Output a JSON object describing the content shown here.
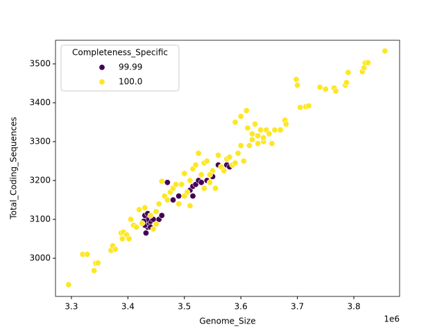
{
  "chart_data": {
    "type": "scatter",
    "x_label": "Genome_Size",
    "y_label": "Total_Coding_Sequences",
    "x_offset_label": "1e6",
    "legend_title": "Completeness_Specific",
    "legend_loc": "upper left",
    "xlim": [
      3.2718,
      3.881
    ],
    "ylim": [
      2901.8,
      3560.7
    ],
    "xticks": [
      3.3,
      3.4,
      3.5,
      3.6,
      3.7,
      3.8
    ],
    "yticks": [
      3000,
      3100,
      3200,
      3300,
      3400,
      3500
    ],
    "series": [
      {
        "name": "99.99",
        "color": "#440154",
        "x": [
          3.432,
          3.435,
          3.43,
          3.438,
          3.44,
          3.433,
          3.445,
          3.43,
          3.435,
          3.455,
          3.46,
          3.47,
          3.48,
          3.49,
          3.51,
          3.515,
          3.52,
          3.525,
          3.53,
          3.54,
          3.55,
          3.56,
          3.575,
          3.58,
          3.515,
          3.44,
          3.428
        ],
        "y": [
          3065,
          3080,
          3085,
          3090,
          3095,
          3100,
          3100,
          3110,
          3115,
          3100,
          3110,
          3195,
          3150,
          3160,
          3175,
          3185,
          3190,
          3200,
          3195,
          3200,
          3210,
          3240,
          3240,
          3235,
          3160,
          3080,
          3095
        ]
      },
      {
        "name": "100.0",
        "color": "#fde725",
        "x": [
          3.295,
          3.32,
          3.328,
          3.34,
          3.343,
          3.347,
          3.37,
          3.373,
          3.378,
          3.39,
          3.388,
          3.392,
          3.398,
          3.402,
          3.405,
          3.41,
          3.415,
          3.42,
          3.425,
          3.43,
          3.45,
          3.46,
          3.455,
          3.465,
          3.47,
          3.475,
          3.48,
          3.485,
          3.49,
          3.495,
          3.5,
          3.505,
          3.51,
          3.515,
          3.52,
          3.525,
          3.53,
          3.535,
          3.54,
          3.545,
          3.55,
          3.555,
          3.56,
          3.57,
          3.575,
          3.58,
          3.585,
          3.59,
          3.595,
          3.6,
          3.6,
          3.605,
          3.61,
          3.612,
          3.615,
          3.62,
          3.625,
          3.63,
          3.635,
          3.64,
          3.645,
          3.65,
          3.655,
          3.66,
          3.67,
          3.678,
          3.68,
          3.698,
          3.7,
          3.705,
          3.715,
          3.72,
          3.74,
          3.75,
          3.765,
          3.768,
          3.785,
          3.787,
          3.79,
          3.815,
          3.818,
          3.82,
          3.825,
          3.855,
          3.44,
          3.445,
          3.45,
          3.5,
          3.51,
          3.535,
          3.545,
          3.565,
          3.59,
          3.62,
          3.63,
          3.64,
          3.66
        ],
        "y": [
          2932,
          3010,
          3010,
          2968,
          2987,
          2988,
          3020,
          3032,
          3023,
          3050,
          3065,
          3067,
          3060,
          3050,
          3100,
          3085,
          3080,
          3125,
          3090,
          3130,
          3120,
          3198,
          3140,
          3160,
          3150,
          3170,
          3180,
          3190,
          3140,
          3190,
          3218,
          3170,
          3200,
          3230,
          3240,
          3270,
          3215,
          3245,
          3250,
          3195,
          3225,
          3180,
          3265,
          3225,
          3255,
          3260,
          3240,
          3350,
          3270,
          3290,
          3365,
          3250,
          3380,
          3335,
          3290,
          3305,
          3345,
          3315,
          3330,
          3300,
          3330,
          3320,
          3295,
          3330,
          3330,
          3355,
          3345,
          3460,
          3445,
          3388,
          3390,
          3392,
          3440,
          3435,
          3438,
          3430,
          3445,
          3452,
          3478,
          3480,
          3490,
          3502,
          3503,
          3533,
          3110,
          3075,
          3088,
          3160,
          3135,
          3180,
          3215,
          3235,
          3245,
          3320,
          3295,
          3310,
          3330
        ]
      }
    ]
  }
}
